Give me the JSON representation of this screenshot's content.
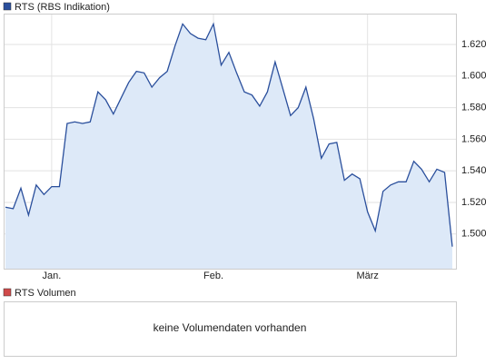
{
  "chart_data": {
    "type": "line",
    "categories": [
      null,
      null,
      null,
      null,
      null,
      null,
      "Jan.",
      null,
      null,
      null,
      null,
      null,
      null,
      null,
      null,
      null,
      null,
      null,
      null,
      null,
      null,
      null,
      null,
      null,
      null,
      null,
      null,
      "Feb.",
      null,
      null,
      null,
      null,
      null,
      null,
      null,
      null,
      null,
      null,
      null,
      null,
      null,
      null,
      null,
      null,
      null,
      null,
      null,
      "März",
      null,
      null,
      null,
      null,
      null,
      null,
      null,
      null,
      null,
      null,
      null
    ],
    "series": [
      {
        "name": "RTS (RBS Indikation)",
        "color": "#2a4f9c",
        "fill": "#dde9f8",
        "values": [
          1.517,
          1.516,
          1.529,
          1.512,
          1.531,
          1.525,
          1.53,
          1.53,
          1.57,
          1.571,
          1.57,
          1.571,
          1.59,
          1.585,
          1.576,
          1.586,
          1.596,
          1.603,
          1.602,
          1.593,
          1.599,
          1.603,
          1.619,
          1.633,
          1.627,
          1.624,
          1.623,
          1.633,
          1.607,
          1.615,
          1.602,
          1.59,
          1.588,
          1.581,
          1.59,
          1.609,
          1.592,
          1.575,
          1.58,
          1.593,
          1.573,
          1.548,
          1.557,
          1.558,
          1.534,
          1.538,
          1.535,
          1.514,
          1.502,
          1.527,
          1.531,
          1.533,
          1.533,
          1.546,
          1.541,
          1.533,
          1.541,
          1.539,
          1.492
        ]
      }
    ],
    "ylim": [
      1.478,
      1.639
    ],
    "yticks": [
      {
        "value": 1.5,
        "label": "1.500"
      },
      {
        "value": 1.52,
        "label": "1.520"
      },
      {
        "value": 1.54,
        "label": "1.540"
      },
      {
        "value": 1.56,
        "label": "1.560"
      },
      {
        "value": 1.58,
        "label": "1.580"
      },
      {
        "value": 1.6,
        "label": "1.600"
      },
      {
        "value": 1.62,
        "label": "1.620"
      }
    ],
    "grid": true
  },
  "volume_panel": {
    "legend": "RTS Volumen",
    "color": "#d04a4a",
    "message": "keine Volumendaten vorhanden"
  }
}
